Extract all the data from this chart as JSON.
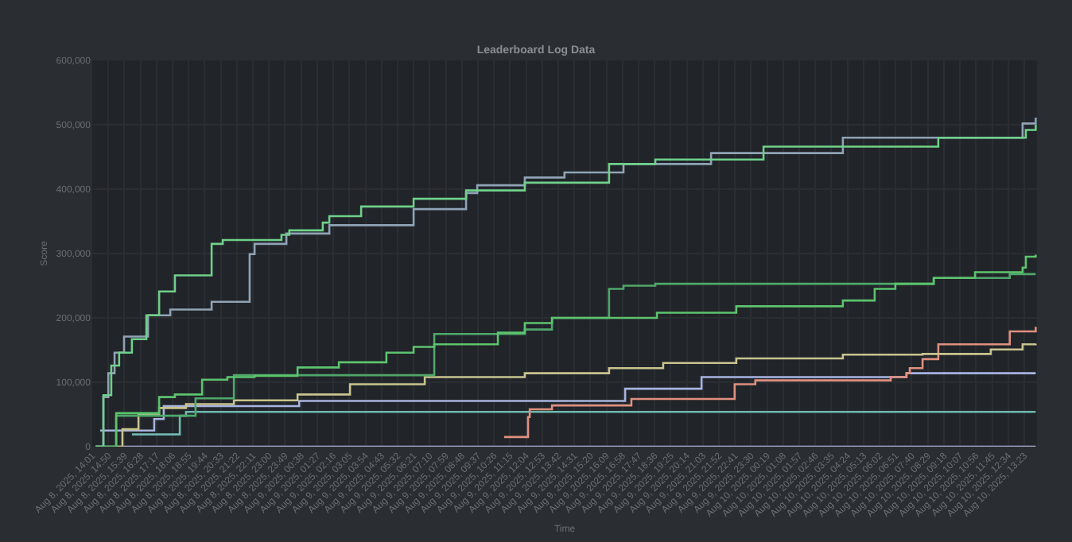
{
  "chart_data": {
    "type": "step",
    "title": "Leaderboard Log Data",
    "xlabel": "Time",
    "ylabel": "Score",
    "xlim": [
      "2025-08-08T14:01",
      "2025-08-10T14:02"
    ],
    "ylim": [
      0,
      600000
    ],
    "yticks": [
      {
        "value": 0,
        "label": "0"
      },
      {
        "value": 100000,
        "label": "100,000"
      },
      {
        "value": 200000,
        "label": "200,000"
      },
      {
        "value": 300000,
        "label": "300,000"
      },
      {
        "value": 400000,
        "label": "400,000"
      },
      {
        "value": 500000,
        "label": "500,000"
      },
      {
        "value": 600000,
        "label": "600,000"
      }
    ],
    "xticks": [
      {
        "value": "2025-08-08T14:01",
        "label": "Aug 8, 2025, 14:01"
      },
      {
        "value": "2025-08-08T14:50",
        "label": "Aug 8, 2025, 14:50"
      },
      {
        "value": "2025-08-08T15:39",
        "label": "Aug 8, 2025, 15:39"
      },
      {
        "value": "2025-08-08T16:28",
        "label": "Aug 8, 2025, 16:28"
      },
      {
        "value": "2025-08-08T17:17",
        "label": "Aug 8, 2025, 17:17"
      },
      {
        "value": "2025-08-08T18:06",
        "label": "Aug 8, 2025, 18:06"
      },
      {
        "value": "2025-08-08T18:55",
        "label": "Aug 8, 2025, 18:55"
      },
      {
        "value": "2025-08-08T19:44",
        "label": "Aug 8, 2025, 19:44"
      },
      {
        "value": "2025-08-08T20:33",
        "label": "Aug 8, 2025, 20:33"
      },
      {
        "value": "2025-08-08T21:22",
        "label": "Aug 8, 2025, 21:22"
      },
      {
        "value": "2025-08-08T22:11",
        "label": "Aug 8, 2025, 22:11"
      },
      {
        "value": "2025-08-08T23:00",
        "label": "Aug 8, 2025, 23:00"
      },
      {
        "value": "2025-08-08T23:49",
        "label": "Aug 8, 2025, 23:49"
      },
      {
        "value": "2025-08-09T00:38",
        "label": "Aug 9, 2025, 00:38"
      },
      {
        "value": "2025-08-09T01:27",
        "label": "Aug 9, 2025, 01:27"
      },
      {
        "value": "2025-08-09T02:16",
        "label": "Aug 9, 2025, 02:16"
      },
      {
        "value": "2025-08-09T03:05",
        "label": "Aug 9, 2025, 03:05"
      },
      {
        "value": "2025-08-09T03:54",
        "label": "Aug 9, 2025, 03:54"
      },
      {
        "value": "2025-08-09T04:43",
        "label": "Aug 9, 2025, 04:43"
      },
      {
        "value": "2025-08-09T05:32",
        "label": "Aug 9, 2025, 05:32"
      },
      {
        "value": "2025-08-09T06:21",
        "label": "Aug 9, 2025, 06:21"
      },
      {
        "value": "2025-08-09T07:10",
        "label": "Aug 9, 2025, 07:10"
      },
      {
        "value": "2025-08-09T07:59",
        "label": "Aug 9, 2025, 07:59"
      },
      {
        "value": "2025-08-09T08:48",
        "label": "Aug 9, 2025, 08:48"
      },
      {
        "value": "2025-08-09T09:37",
        "label": "Aug 9, 2025, 09:37"
      },
      {
        "value": "2025-08-09T10:26",
        "label": "Aug 9, 2025, 10:26"
      },
      {
        "value": "2025-08-09T11:15",
        "label": "Aug 9, 2025, 11:15"
      },
      {
        "value": "2025-08-09T12:04",
        "label": "Aug 9, 2025, 12:04"
      },
      {
        "value": "2025-08-09T12:53",
        "label": "Aug 9, 2025, 12:53"
      },
      {
        "value": "2025-08-09T13:42",
        "label": "Aug 9, 2025, 13:42"
      },
      {
        "value": "2025-08-09T14:31",
        "label": "Aug 9, 2025, 14:31"
      },
      {
        "value": "2025-08-09T15:20",
        "label": "Aug 9, 2025, 15:20"
      },
      {
        "value": "2025-08-09T16:09",
        "label": "Aug 9, 2025, 16:09"
      },
      {
        "value": "2025-08-09T16:58",
        "label": "Aug 9, 2025, 16:58"
      },
      {
        "value": "2025-08-09T17:47",
        "label": "Aug 9, 2025, 17:47"
      },
      {
        "value": "2025-08-09T18:36",
        "label": "Aug 9, 2025, 18:36"
      },
      {
        "value": "2025-08-09T19:25",
        "label": "Aug 9, 2025, 19:25"
      },
      {
        "value": "2025-08-09T20:14",
        "label": "Aug 9, 2025, 20:14"
      },
      {
        "value": "2025-08-09T21:03",
        "label": "Aug 9, 2025, 21:03"
      },
      {
        "value": "2025-08-09T21:52",
        "label": "Aug 9, 2025, 21:52"
      },
      {
        "value": "2025-08-09T22:41",
        "label": "Aug 9, 2025, 22:41"
      },
      {
        "value": "2025-08-09T23:30",
        "label": "Aug 9, 2025, 23:30"
      },
      {
        "value": "2025-08-10T00:19",
        "label": "Aug 10, 2025, 00:19"
      },
      {
        "value": "2025-08-10T01:08",
        "label": "Aug 10, 2025, 01:08"
      },
      {
        "value": "2025-08-10T01:57",
        "label": "Aug 10, 2025, 01:57"
      },
      {
        "value": "2025-08-10T02:46",
        "label": "Aug 10, 2025, 02:46"
      },
      {
        "value": "2025-08-10T03:35",
        "label": "Aug 10, 2025, 03:35"
      },
      {
        "value": "2025-08-10T04:24",
        "label": "Aug 10, 2025, 04:24"
      },
      {
        "value": "2025-08-10T05:13",
        "label": "Aug 10, 2025, 05:13"
      },
      {
        "value": "2025-08-10T06:02",
        "label": "Aug 10, 2025, 06:02"
      },
      {
        "value": "2025-08-10T06:51",
        "label": "Aug 10, 2025, 06:51"
      },
      {
        "value": "2025-08-10T07:40",
        "label": "Aug 10, 2025, 07:40"
      },
      {
        "value": "2025-08-10T08:29",
        "label": "Aug 10, 2025, 08:29"
      },
      {
        "value": "2025-08-10T09:18",
        "label": "Aug 10, 2025, 09:18"
      },
      {
        "value": "2025-08-10T10:07",
        "label": "Aug 10, 2025, 10:07"
      },
      {
        "value": "2025-08-10T10:56",
        "label": "Aug 10, 2025, 10:56"
      },
      {
        "value": "2025-08-10T11:45",
        "label": "Aug 10, 2025, 11:45"
      },
      {
        "value": "2025-08-10T12:34",
        "label": "Aug 10, 2025, 12:34"
      },
      {
        "value": "2025-08-10T13:23",
        "label": "Aug 10, 2025, 13:23"
      }
    ],
    "grid": true,
    "series": [
      {
        "color": "#b0b4d8",
        "x": [
          "2025-08-08T14:11",
          "2025-08-10T13:58"
        ],
        "values": [
          0,
          0
        ]
      },
      {
        "color": "#6fb8b0",
        "x": [
          "2025-08-08T16:02",
          "2025-08-08T18:28",
          "2025-08-08T18:47",
          "2025-08-10T13:58"
        ],
        "values": [
          19000,
          48000,
          54000,
          54000
        ]
      },
      {
        "color": "#a8b4e0",
        "x": [
          "2025-08-08T14:25",
          "2025-08-08T17:10",
          "2025-08-08T17:39",
          "2025-08-09T00:32",
          "2025-08-09T17:06",
          "2025-08-09T20:59",
          "2025-08-10T07:24",
          "2025-08-10T13:58"
        ],
        "values": [
          25000,
          43000,
          63000,
          71000,
          90000,
          108000,
          114000,
          114000
        ]
      },
      {
        "color": "#e0907f",
        "x": [
          "2025-08-09T10:57",
          "2025-08-09T12:10",
          "2025-08-09T12:15",
          "2025-08-09T13:23",
          "2025-08-09T17:25",
          "2025-08-09T22:40",
          "2025-08-09T23:43",
          "2025-08-10T06:36",
          "2025-08-10T07:24",
          "2025-08-10T07:34",
          "2025-08-10T08:13",
          "2025-08-10T09:01",
          "2025-08-10T12:39",
          "2025-08-10T13:58"
        ],
        "values": [
          15000,
          46000,
          58000,
          64000,
          74000,
          97000,
          103000,
          108000,
          114000,
          122000,
          136000,
          159000,
          179000,
          186000
        ]
      },
      {
        "color": "#c9c48e",
        "x": [
          "2025-08-08T15:14",
          "2025-08-08T15:33",
          "2025-08-08T16:22",
          "2025-08-08T17:25",
          "2025-08-08T18:47",
          "2025-08-08T21:13",
          "2025-08-09T00:27",
          "2025-08-09T03:07",
          "2025-08-09T06:55",
          "2025-08-09T12:00",
          "2025-08-09T16:17",
          "2025-08-09T19:02",
          "2025-08-09T22:45",
          "2025-08-10T04:10",
          "2025-08-10T08:13",
          "2025-08-10T11:41",
          "2025-08-10T13:18",
          "2025-08-10T13:58"
        ],
        "values": [
          0,
          27000,
          50000,
          60000,
          66000,
          72000,
          81000,
          97000,
          108000,
          114000,
          122000,
          130000,
          137000,
          143000,
          144000,
          151000,
          159000,
          160000
        ]
      },
      {
        "color": "#4fa86a",
        "x": [
          "2025-08-08T14:11",
          "2025-08-08T15:14",
          "2025-08-08T19:16",
          "2025-08-08T21:13",
          "2025-08-09T07:24",
          "2025-08-09T12:00",
          "2025-08-09T13:23",
          "2025-08-09T16:17",
          "2025-08-09T17:01",
          "2025-08-09T18:38",
          "2025-08-10T08:47",
          "2025-08-10T12:39",
          "2025-08-10T13:58"
        ],
        "values": [
          0,
          48000,
          75000,
          111000,
          175000,
          182000,
          200000,
          245000,
          250000,
          253000,
          262000,
          268000,
          268000
        ]
      },
      {
        "color": "#5cc46e",
        "x": [
          "2025-08-08T14:11",
          "2025-08-08T15:14",
          "2025-08-08T17:25",
          "2025-08-08T18:13",
          "2025-08-08T19:36",
          "2025-08-08T20:53",
          "2025-08-08T22:16",
          "2025-08-09T00:27",
          "2025-08-09T02:33",
          "2025-08-09T04:58",
          "2025-08-09T06:21",
          "2025-08-09T07:24",
          "2025-08-09T10:38",
          "2025-08-09T12:00",
          "2025-08-09T13:23",
          "2025-08-09T18:43",
          "2025-08-09T22:45",
          "2025-08-10T04:10",
          "2025-08-10T05:47",
          "2025-08-10T06:50",
          "2025-08-10T08:47",
          "2025-08-10T10:53",
          "2025-08-10T13:18",
          "2025-08-10T13:28",
          "2025-08-10T13:58"
        ],
        "values": [
          0,
          52000,
          77000,
          81000,
          104000,
          108000,
          110000,
          123000,
          131000,
          146000,
          155000,
          159000,
          177000,
          192000,
          200000,
          208000,
          218000,
          227000,
          245000,
          253000,
          262000,
          271000,
          278000,
          295000,
          298000
        ]
      },
      {
        "color": "#8fa3b5",
        "x": [
          "2025-08-08T14:11",
          "2025-08-08T14:35",
          "2025-08-08T14:50",
          "2025-08-08T15:09",
          "2025-08-08T15:38",
          "2025-08-08T16:51",
          "2025-08-08T17:59",
          "2025-08-08T20:05",
          "2025-08-08T22:01",
          "2025-08-08T22:16",
          "2025-08-08T23:53",
          "2025-08-09T02:04",
          "2025-08-09T06:21",
          "2025-08-09T09:01",
          "2025-08-09T09:35",
          "2025-08-09T12:00",
          "2025-08-09T14:01",
          "2025-08-09T17:01",
          "2025-08-09T21:28",
          "2025-08-10T04:10",
          "2025-08-10T13:18",
          "2025-08-10T13:58"
        ],
        "values": [
          0,
          77000,
          114000,
          146000,
          171000,
          204000,
          213000,
          225000,
          299000,
          315000,
          331000,
          344000,
          369000,
          394000,
          406000,
          418000,
          426000,
          439000,
          456000,
          480000,
          502000,
          511000
        ]
      },
      {
        "color": "#6fd08a",
        "x": [
          "2025-08-08T14:11",
          "2025-08-08T14:35",
          "2025-08-08T14:59",
          "2025-08-08T15:23",
          "2025-08-08T16:02",
          "2025-08-08T16:46",
          "2025-08-08T17:25",
          "2025-08-08T18:13",
          "2025-08-08T20:05",
          "2025-08-08T20:39",
          "2025-08-08T23:38",
          "2025-08-09T00:02",
          "2025-08-09T01:44",
          "2025-08-09T02:04",
          "2025-08-09T03:41",
          "2025-08-09T06:21",
          "2025-08-09T09:01",
          "2025-08-09T12:00",
          "2025-08-09T16:17",
          "2025-08-09T18:38",
          "2025-08-10T00:08",
          "2025-08-10T09:01",
          "2025-08-10T13:28",
          "2025-08-10T13:58"
        ],
        "values": [
          0,
          80000,
          126000,
          146000,
          167000,
          204000,
          241000,
          266000,
          315000,
          321000,
          329000,
          336000,
          348000,
          358000,
          373000,
          385000,
          398000,
          410000,
          439000,
          446000,
          466000,
          480000,
          492000,
          500000
        ]
      }
    ]
  }
}
